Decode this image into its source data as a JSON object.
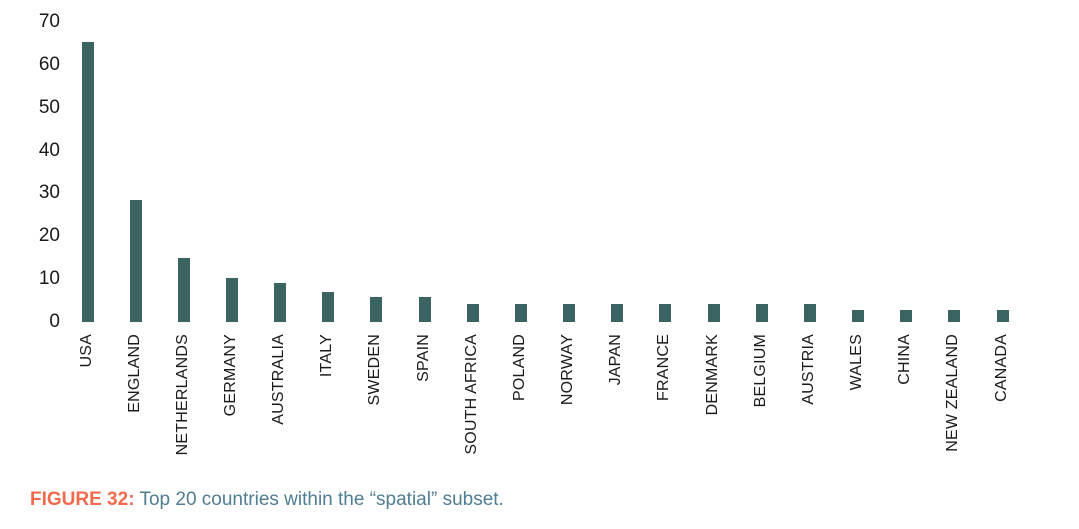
{
  "chart_data": {
    "type": "bar",
    "title": "",
    "xlabel": "",
    "ylabel": "",
    "categories": [
      "USA",
      "ENGLAND",
      "NETHERLANDS",
      "GERMANY",
      "AUSTRALIA",
      "ITALY",
      "SWEDEN",
      "SPAIN",
      "SOUTH AFRICA",
      "POLAND",
      "NORWAY",
      "JAPAN",
      "FRANCE",
      "DENMARK",
      "BELGIUM",
      "AUSTRIA",
      "WALES",
      "CHINA",
      "NEW ZEALAND",
      "CANADA"
    ],
    "values": [
      65.4,
      28.4,
      15,
      10.2,
      9.2,
      6.9,
      5.8,
      5.8,
      4.1,
      4.1,
      4.1,
      4.1,
      4.1,
      4.1,
      4.1,
      4.1,
      2.8,
      2.8,
      2.8,
      2.8
    ],
    "ylim": [
      0,
      70
    ],
    "yticks": [
      0,
      10,
      20,
      30,
      40,
      50,
      60,
      70
    ],
    "grid": false,
    "legend": "none",
    "x_tick_label_rotation": 90,
    "bar_color": "#3a6361",
    "tick_label_color": "#1a1a1a"
  },
  "caption": {
    "label": "FIGURE 32:",
    "text": " Top 20 countries within the “spatial” subset.",
    "label_color": "#f2694c",
    "text_color": "#4f7d91"
  }
}
